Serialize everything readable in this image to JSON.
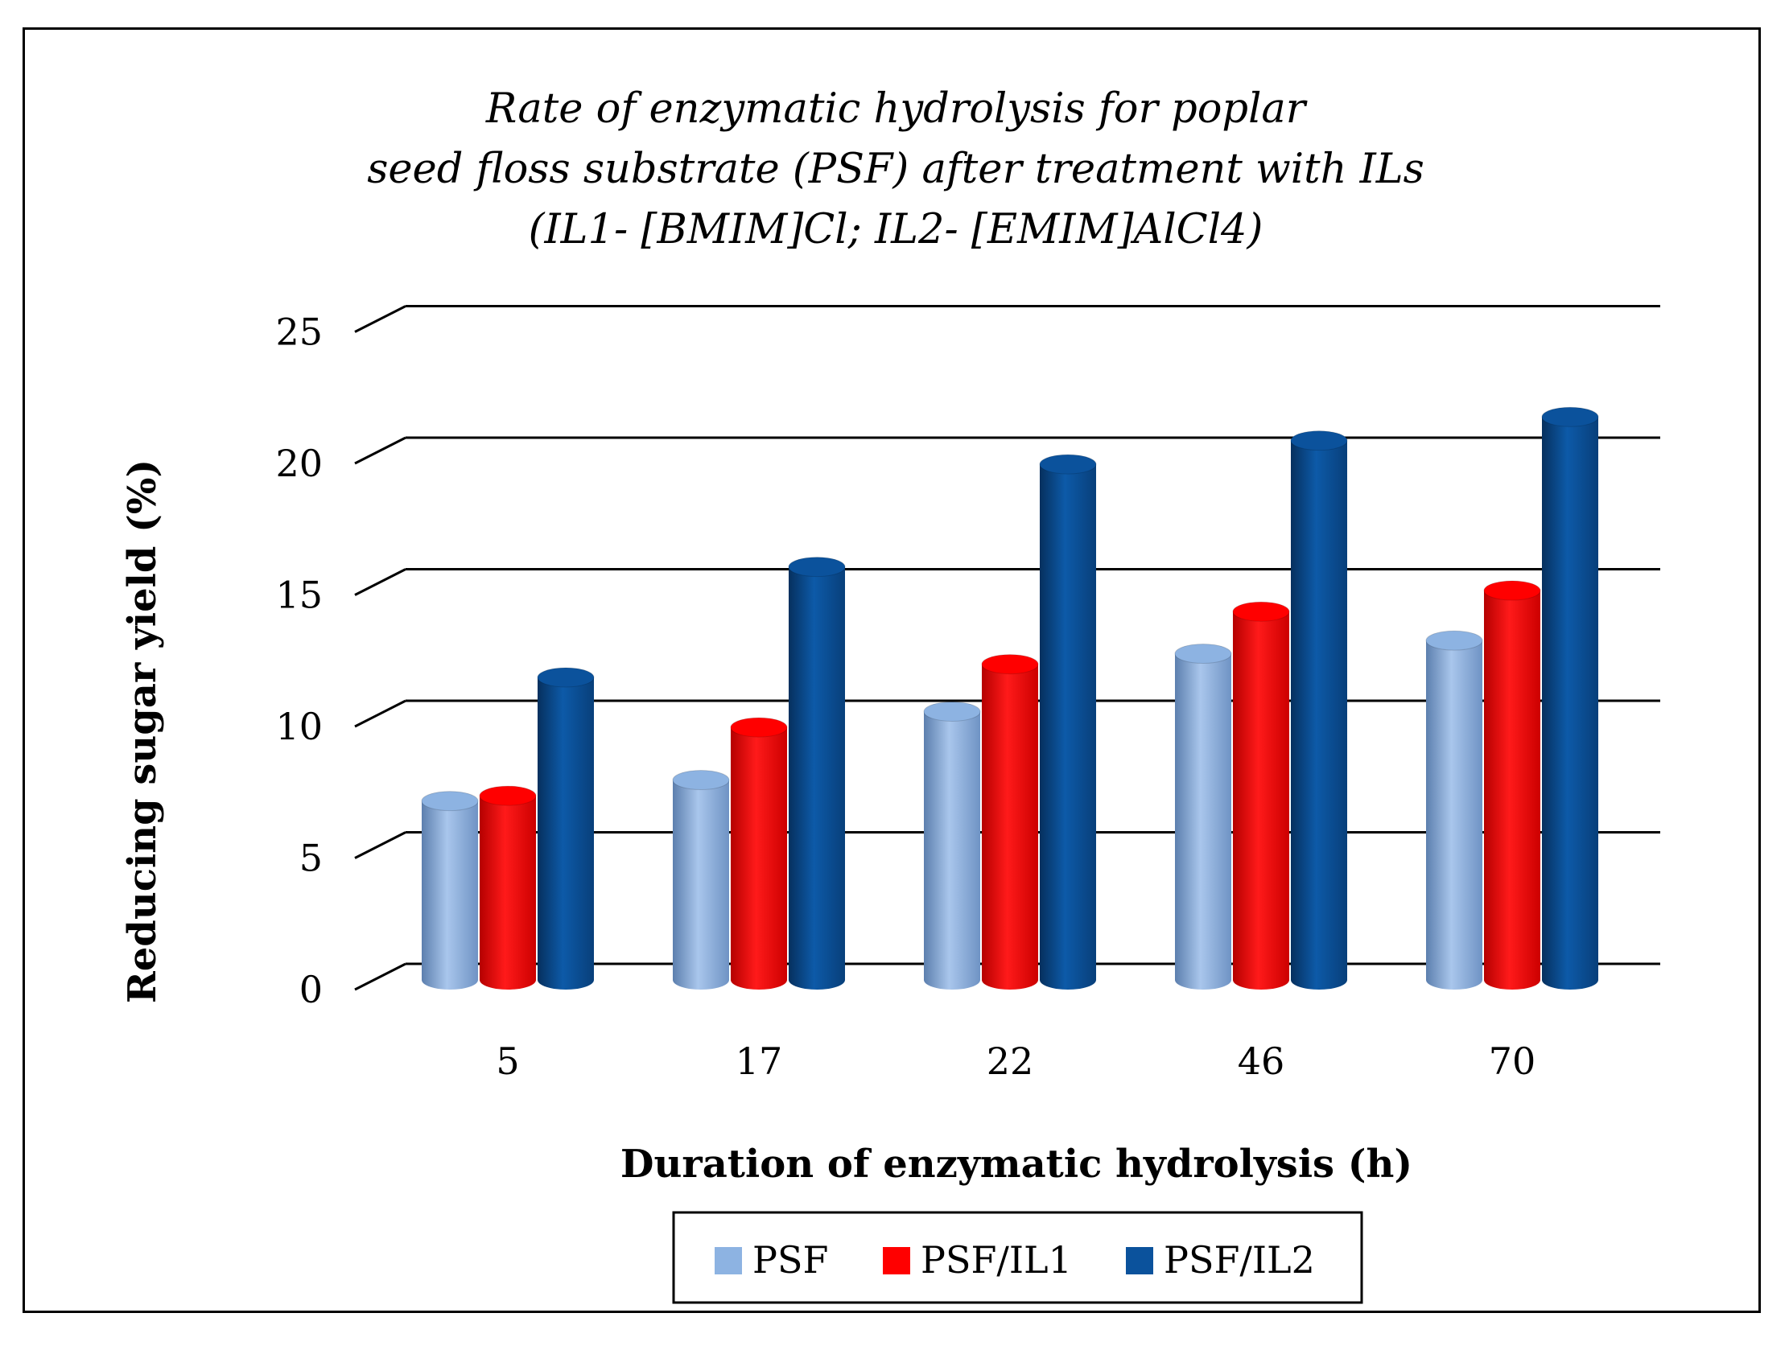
{
  "chart_data": {
    "type": "bar",
    "title_lines": [
      "Rate of enzymatic hydrolysis for poplar",
      "seed floss substrate (PSF) after treatment with ILs",
      "(IL1- [BMIM]Cl; IL2- [EMIM]AlCl4)"
    ],
    "xlabel": "Duration of enzymatic hydrolysis (h)",
    "ylabel": "Reducing sugar yield (%)",
    "categories": [
      "5",
      "17",
      "22",
      "46",
      "70"
    ],
    "yticks": [
      "0",
      "5",
      "10",
      "15",
      "20",
      "25"
    ],
    "ylim": [
      0,
      25
    ],
    "grid": true,
    "legend_position": "bottom",
    "series": [
      {
        "name": "PSF",
        "color": "#8db3e2",
        "values": [
          6.8,
          7.6,
          10.2,
          12.4,
          12.9
        ]
      },
      {
        "name": "PSF/IL1",
        "color": "#ff0000",
        "values": [
          7.0,
          9.6,
          12.0,
          14.0,
          14.8
        ]
      },
      {
        "name": "PSF/IL2",
        "color": "#0b529c",
        "values": [
          11.5,
          15.7,
          19.6,
          20.5,
          21.4
        ]
      }
    ]
  }
}
